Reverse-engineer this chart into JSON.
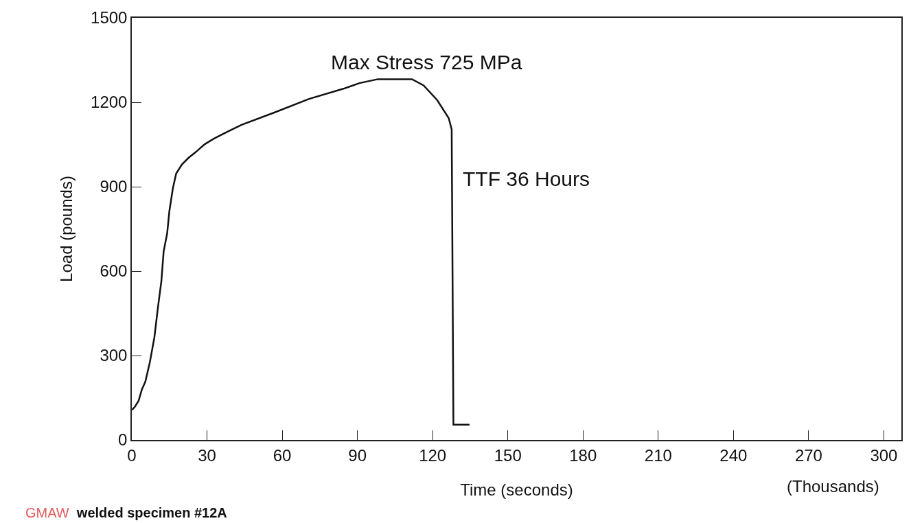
{
  "chart_data": {
    "type": "line",
    "xlabel": "Time (seconds)",
    "ylabel": "Load (pounds)",
    "series": [
      {
        "color": "#111111",
        "x": [
          0.1,
          1.3,
          2.7,
          4.0,
          5.4,
          7.2,
          9.0,
          10.4,
          11.8,
          12.7,
          14.1,
          15.0,
          16.4,
          17.7,
          20.0,
          22.7,
          25.5,
          29.1,
          32.8,
          38.3,
          43.8,
          57.0,
          70.7,
          84.4,
          90.8,
          98.1,
          111.8,
          116.4,
          121.8,
          126.4,
          127.6,
          128.3,
          134.7
        ],
        "values": [
          107,
          119,
          139,
          179,
          207,
          276,
          364,
          469,
          565,
          670,
          734,
          814,
          895,
          947,
          979,
          1003,
          1023,
          1051,
          1071,
          1096,
          1120,
          1164,
          1212,
          1248,
          1268,
          1282,
          1282,
          1260,
          1208,
          1144,
          1104,
          54,
          54
        ]
      }
    ],
    "xlim": [
      0,
      307
    ],
    "ylim": [
      0,
      1500
    ],
    "xticks": [
      0,
      30,
      60,
      90,
      120,
      150,
      180,
      210,
      240,
      270,
      300
    ],
    "yticks": [
      0,
      300,
      600,
      900,
      1200,
      1500
    ],
    "marker": "none",
    "line_style": "solid",
    "annotations": [
      "Max Stress 725 MPa",
      "TTF 36 Hours",
      "(Thousands)",
      "GMAW welded specimen #12A"
    ]
  }
}
